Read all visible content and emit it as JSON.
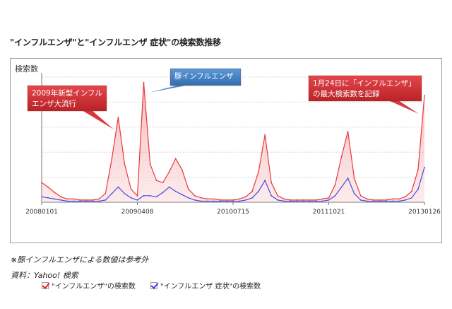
{
  "title": "\"インフルエンザ\"と\"インフルエンザ 症状\"の検索数推移",
  "note": "※豚インフルエンザによる数値は参考外",
  "source": "資料：Yahoo! 検索",
  "chart_data": {
    "type": "line",
    "ylabel": "検索数",
    "x_ticks": [
      "20080101",
      "20090408",
      "20100715",
      "20111021",
      "20130126"
    ],
    "x": [
      "2008-01",
      "2008-02",
      "2008-03",
      "2008-04",
      "2008-05",
      "2008-06",
      "2008-07",
      "2008-08",
      "2008-09",
      "2008-10",
      "2008-11",
      "2008-12",
      "2009-01",
      "2009-02",
      "2009-03",
      "2009-04",
      "2009-05",
      "2009-06",
      "2009-07",
      "2009-08",
      "2009-09",
      "2009-10",
      "2009-11",
      "2009-12",
      "2010-01",
      "2010-02",
      "2010-03",
      "2010-04",
      "2010-05",
      "2010-06",
      "2010-07",
      "2010-08",
      "2010-09",
      "2010-10",
      "2010-11",
      "2010-12",
      "2011-01",
      "2011-02",
      "2011-03",
      "2011-04",
      "2011-05",
      "2011-06",
      "2011-07",
      "2011-08",
      "2011-09",
      "2011-10",
      "2011-11",
      "2011-12",
      "2012-01",
      "2012-02",
      "2012-03",
      "2012-04",
      "2012-05",
      "2012-06",
      "2012-07",
      "2012-08",
      "2012-09",
      "2012-10",
      "2012-11",
      "2012-12",
      "2013-01"
    ],
    "series": [
      {
        "name": "\"インフルエンザ\"の検索数",
        "color": "#e8383d",
        "values": [
          18,
          14,
          9,
          5,
          3,
          3,
          2,
          2,
          2,
          3,
          8,
          40,
          78,
          35,
          12,
          6,
          110,
          35,
          20,
          18,
          28,
          40,
          30,
          12,
          6,
          4,
          3,
          3,
          2,
          2,
          2,
          3,
          5,
          10,
          28,
          62,
          18,
          6,
          3,
          2,
          2,
          2,
          2,
          2,
          3,
          4,
          16,
          42,
          65,
          22,
          6,
          3,
          2,
          2,
          2,
          3,
          3,
          5,
          10,
          30,
          98
        ]
      },
      {
        "name": "\"インフルエンザ 症状\"の検索数",
        "color": "#4a4ae0",
        "values": [
          5,
          4,
          3,
          2,
          1,
          1,
          1,
          1,
          1,
          1,
          2,
          8,
          14,
          8,
          4,
          2,
          6,
          6,
          5,
          9,
          14,
          10,
          7,
          4,
          2,
          1,
          1,
          1,
          1,
          1,
          1,
          1,
          2,
          4,
          10,
          20,
          6,
          2,
          1,
          1,
          1,
          1,
          1,
          1,
          1,
          2,
          6,
          14,
          22,
          8,
          2,
          1,
          1,
          1,
          1,
          1,
          1,
          2,
          4,
          12,
          32
        ]
      }
    ],
    "annotations": [
      {
        "text": "2009年新型インフル\nエンザ大流行",
        "color": "#d9393e",
        "point": "2009-01"
      },
      {
        "text": "豚インフルエンザ",
        "color": "#4a86c8",
        "point": "2009-05"
      },
      {
        "text": "1月24日に「インフルエンザ」\nの最大検索数を記録",
        "color": "#d9393e",
        "point": "2013-01"
      }
    ]
  }
}
